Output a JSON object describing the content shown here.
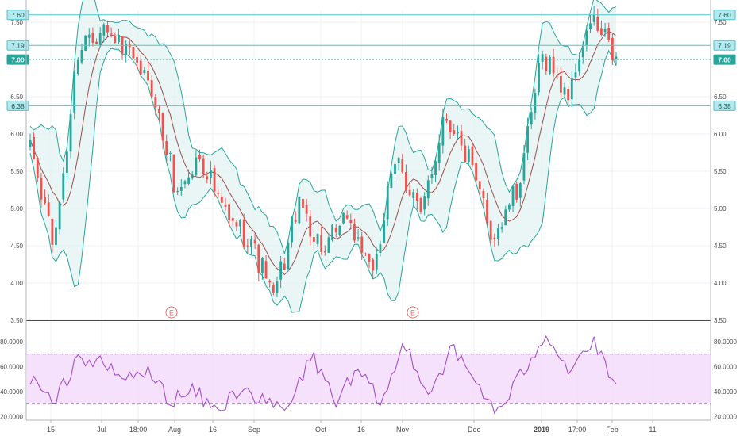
{
  "colors": {
    "up": "#26a69a",
    "down": "#ef5350",
    "bb_line": "#26a69a",
    "bb_fill": "#e0f2f1",
    "basis": "#9c4d4d",
    "rsi_line": "#a24fc8",
    "rsi_band": "#f3d9fb",
    "level": "#4fc3c6",
    "earnings": "#e57373"
  },
  "chart_data": [
    {
      "type": "candlestick",
      "title": "",
      "xlabel": "",
      "ylabel": "",
      "x_ticks": [
        "15",
        "Jul",
        "18:00",
        "Aug",
        "16",
        "Sep",
        "Oct",
        "16",
        "Nov",
        "Dec",
        "2019",
        "17:00",
        "Feb",
        "11"
      ],
      "y_ticks": [
        "3.50",
        "4.00",
        "4.50",
        "5.00",
        "5.50",
        "6.00",
        "6.50",
        "7.50"
      ],
      "ylim": [
        3.5,
        7.65
      ],
      "price_levels": [
        {
          "label": "7.60",
          "value": 7.6,
          "style": "outline"
        },
        {
          "label": "7.19",
          "value": 7.19,
          "style": "outline"
        },
        {
          "label": "7.00",
          "value": 7.0,
          "style": "solid"
        },
        {
          "label": "6.38",
          "value": 6.38,
          "style": "outline"
        }
      ],
      "earnings_markers": [
        {
          "label": "E",
          "x": "Aug"
        },
        {
          "label": "E",
          "x": "Nov"
        }
      ],
      "indicators": [
        "Bollinger Bands (20, 2)"
      ],
      "grid": true,
      "key_points": [
        {
          "x": "Jun start",
          "close": 5.8
        },
        {
          "x": "Jun mid",
          "close": 4.5
        },
        {
          "x": "late Jun",
          "close": 7.2
        },
        {
          "x": "early Jul",
          "close": 7.45
        },
        {
          "x": "mid Jul",
          "close": 7.05
        },
        {
          "x": "late Jul",
          "close": 6.6
        },
        {
          "x": "early Aug",
          "close": 5.2
        },
        {
          "x": "mid Aug",
          "close": 5.7
        },
        {
          "x": "late Aug",
          "close": 4.9
        },
        {
          "x": "early Sep",
          "close": 4.6
        },
        {
          "x": "late Sep",
          "close": 3.8
        },
        {
          "x": "early Oct",
          "close": 5.1
        },
        {
          "x": "mid Oct",
          "close": 4.4
        },
        {
          "x": "late Oct",
          "close": 4.9
        },
        {
          "x": "Nov start",
          "close": 4.1
        },
        {
          "x": "mid Nov",
          "close": 5.7
        },
        {
          "x": "late Nov",
          "close": 4.9
        },
        {
          "x": "early Dec",
          "close": 6.3
        },
        {
          "x": "mid Dec",
          "close": 5.6
        },
        {
          "x": "late Dec",
          "close": 4.6
        },
        {
          "x": "early Jan",
          "close": 5.3
        },
        {
          "x": "mid Jan",
          "close": 7.1
        },
        {
          "x": "late Jan",
          "close": 6.5
        },
        {
          "x": "Jan 30",
          "close": 7.55
        },
        {
          "x": "Feb",
          "close": 7.0
        }
      ]
    },
    {
      "type": "line",
      "title": "",
      "y_ticks": [
        "20.0000",
        "40.0000",
        "60.0000",
        "80.0000"
      ],
      "ylim": [
        17,
        96
      ],
      "band": [
        30,
        70
      ],
      "grid": true,
      "key_points": [
        {
          "x": "Jun start",
          "value": 52
        },
        {
          "x": "Jun mid",
          "value": 28
        },
        {
          "x": "late Jun",
          "value": 68
        },
        {
          "x": "Jul",
          "value": 62
        },
        {
          "x": "mid Jul",
          "value": 50
        },
        {
          "x": "late Jul",
          "value": 56
        },
        {
          "x": "Aug",
          "value": 33
        },
        {
          "x": "mid Aug",
          "value": 40
        },
        {
          "x": "late Aug",
          "value": 23
        },
        {
          "x": "early Sep",
          "value": 45
        },
        {
          "x": "mid Sep",
          "value": 30
        },
        {
          "x": "late Sep",
          "value": 25
        },
        {
          "x": "early Oct",
          "value": 70
        },
        {
          "x": "mid Oct",
          "value": 33
        },
        {
          "x": "late Oct",
          "value": 55
        },
        {
          "x": "Nov start",
          "value": 30
        },
        {
          "x": "mid Nov",
          "value": 80
        },
        {
          "x": "late Nov",
          "value": 38
        },
        {
          "x": "early Dec",
          "value": 74
        },
        {
          "x": "mid Dec",
          "value": 48
        },
        {
          "x": "late Dec",
          "value": 22
        },
        {
          "x": "early Jan",
          "value": 55
        },
        {
          "x": "mid Jan",
          "value": 88
        },
        {
          "x": "late Jan",
          "value": 57
        },
        {
          "x": "Jan 30",
          "value": 80
        },
        {
          "x": "Feb",
          "value": 42
        }
      ]
    }
  ]
}
